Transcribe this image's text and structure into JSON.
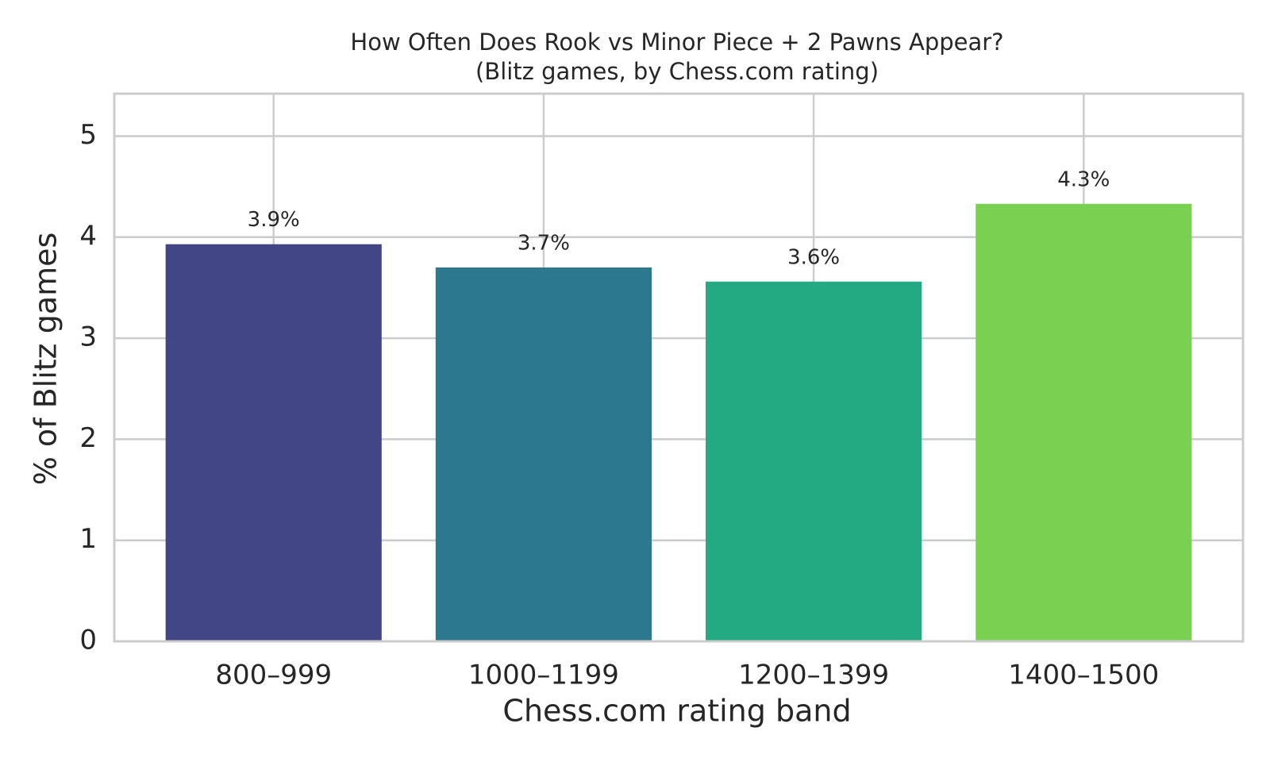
{
  "chart_data": {
    "type": "bar",
    "title": "How Often Does Rook vs Minor Piece + 2 Pawns Appear?",
    "subtitle": "(Blitz games, by Chess.com rating)",
    "x_label": "Chess.com rating band",
    "y_label": "% of Blitz games",
    "categories": [
      "800–999",
      "1000–1199",
      "1200–1399",
      "1400–1500"
    ],
    "values": [
      3.93,
      3.7,
      3.56,
      4.33
    ],
    "value_labels": [
      "3.9%",
      "3.7%",
      "3.6%",
      "4.3%"
    ],
    "colors": [
      "#424586",
      "#2c788e",
      "#24aa83",
      "#7ad151"
    ],
    "ylim": [
      0,
      5.42
    ],
    "yticks": [
      0,
      1,
      2,
      3,
      4,
      5
    ],
    "grid": true
  }
}
